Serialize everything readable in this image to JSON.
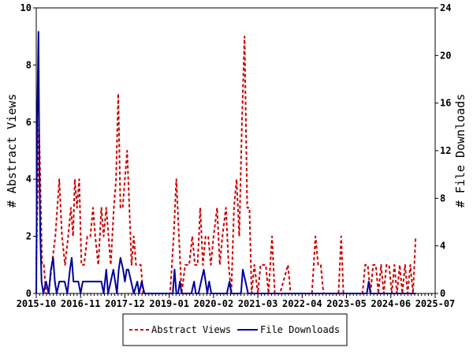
{
  "chart_data": {
    "type": "line",
    "x_axis": {
      "tick_labels": [
        "2015-10",
        "2016-11",
        "2017-12",
        "2019-01",
        "2020-02",
        "2021-03",
        "2022-04",
        "2023-05",
        "2024-06",
        "2025-07"
      ],
      "range": [
        "2015-10",
        "2025-07"
      ]
    },
    "y_left": {
      "label": "# Abstract Views",
      "min": 0,
      "max": 10,
      "ticks": [
        0,
        2,
        4,
        6,
        8,
        10
      ]
    },
    "y_right": {
      "label": "# File Downloads",
      "min": 0,
      "max": 24,
      "ticks": [
        0,
        4,
        8,
        12,
        16,
        20,
        24
      ]
    },
    "grid": false,
    "legend_placement": "bottom-center",
    "series": [
      {
        "name": "Abstract Views",
        "axis": "left",
        "color": "#cc0000",
        "style": "dashed",
        "points": [
          [
            0.0,
            1
          ],
          [
            0.06,
            6
          ],
          [
            0.09,
            4
          ],
          [
            0.13,
            1
          ],
          [
            0.17,
            1
          ],
          [
            0.22,
            0
          ],
          [
            0.28,
            0
          ],
          [
            0.35,
            1
          ],
          [
            0.43,
            2
          ],
          [
            0.52,
            4
          ],
          [
            0.58,
            2
          ],
          [
            0.65,
            1
          ],
          [
            0.72,
            2
          ],
          [
            0.78,
            3
          ],
          [
            0.83,
            2
          ],
          [
            0.87,
            4
          ],
          [
            0.92,
            3
          ],
          [
            0.97,
            4
          ],
          [
            1.02,
            1
          ],
          [
            1.08,
            1
          ],
          [
            1.15,
            2
          ],
          [
            1.22,
            2
          ],
          [
            1.28,
            3
          ],
          [
            1.33,
            2
          ],
          [
            1.4,
            1
          ],
          [
            1.47,
            3
          ],
          [
            1.52,
            2
          ],
          [
            1.58,
            3
          ],
          [
            1.63,
            2
          ],
          [
            1.68,
            1
          ],
          [
            1.75,
            3
          ],
          [
            1.8,
            4
          ],
          [
            1.85,
            7
          ],
          [
            1.9,
            3
          ],
          [
            1.95,
            3
          ],
          [
            2.0,
            4
          ],
          [
            2.05,
            5
          ],
          [
            2.1,
            3
          ],
          [
            2.15,
            1
          ],
          [
            2.2,
            2
          ],
          [
            2.25,
            1
          ],
          [
            2.3,
            1
          ],
          [
            2.36,
            1
          ],
          [
            2.41,
            0
          ],
          [
            2.5,
            0
          ],
          [
            2.7,
            0
          ],
          [
            2.9,
            0
          ],
          [
            3.02,
            0
          ],
          [
            3.1,
            2
          ],
          [
            3.16,
            4
          ],
          [
            3.22,
            2
          ],
          [
            3.28,
            0
          ],
          [
            3.36,
            1
          ],
          [
            3.45,
            1
          ],
          [
            3.52,
            2
          ],
          [
            3.58,
            1
          ],
          [
            3.64,
            1
          ],
          [
            3.7,
            3
          ],
          [
            3.76,
            1
          ],
          [
            3.82,
            2
          ],
          [
            3.88,
            2
          ],
          [
            3.94,
            1
          ],
          [
            4.0,
            2
          ],
          [
            4.08,
            3
          ],
          [
            4.14,
            1
          ],
          [
            4.2,
            2
          ],
          [
            4.28,
            3
          ],
          [
            4.34,
            1
          ],
          [
            4.4,
            0
          ],
          [
            4.46,
            3
          ],
          [
            4.52,
            4
          ],
          [
            4.58,
            2
          ],
          [
            4.64,
            6
          ],
          [
            4.7,
            9
          ],
          [
            4.76,
            3
          ],
          [
            4.81,
            3
          ],
          [
            4.86,
            0
          ],
          [
            4.92,
            1
          ],
          [
            5.0,
            0
          ],
          [
            5.06,
            1
          ],
          [
            5.12,
            1
          ],
          [
            5.18,
            1
          ],
          [
            5.24,
            0
          ],
          [
            5.32,
            2
          ],
          [
            5.38,
            0
          ],
          [
            5.5,
            0
          ],
          [
            5.68,
            1
          ],
          [
            5.74,
            0
          ],
          [
            5.9,
            0
          ],
          [
            6.1,
            0
          ],
          [
            6.22,
            0
          ],
          [
            6.3,
            2
          ],
          [
            6.36,
            1
          ],
          [
            6.42,
            1
          ],
          [
            6.48,
            0
          ],
          [
            6.6,
            0
          ],
          [
            6.72,
            0
          ],
          [
            6.82,
            0
          ],
          [
            6.88,
            2
          ],
          [
            6.93,
            0
          ],
          [
            7.05,
            0
          ],
          [
            7.15,
            0
          ],
          [
            7.25,
            0
          ],
          [
            7.36,
            0
          ],
          [
            7.42,
            1
          ],
          [
            7.48,
            1
          ],
          [
            7.54,
            0
          ],
          [
            7.6,
            1
          ],
          [
            7.66,
            1
          ],
          [
            7.72,
            0
          ],
          [
            7.78,
            1
          ],
          [
            7.84,
            0
          ],
          [
            7.9,
            1
          ],
          [
            7.96,
            1
          ],
          [
            8.02,
            0
          ],
          [
            8.08,
            1
          ],
          [
            8.14,
            0
          ],
          [
            8.2,
            1
          ],
          [
            8.26,
            0
          ],
          [
            8.32,
            1
          ],
          [
            8.38,
            0
          ],
          [
            8.44,
            1
          ],
          [
            8.5,
            0
          ],
          [
            8.56,
            2
          ]
        ]
      },
      {
        "name": "File Downloads",
        "axis": "right",
        "color": "#000099",
        "style": "solid",
        "points": [
          [
            0.0,
            0
          ],
          [
            0.02,
            14
          ],
          [
            0.05,
            22
          ],
          [
            0.07,
            11
          ],
          [
            0.09,
            5
          ],
          [
            0.12,
            1
          ],
          [
            0.16,
            0
          ],
          [
            0.22,
            1
          ],
          [
            0.28,
            0
          ],
          [
            0.33,
            2
          ],
          [
            0.38,
            3
          ],
          [
            0.42,
            1
          ],
          [
            0.46,
            0
          ],
          [
            0.52,
            1
          ],
          [
            0.58,
            1
          ],
          [
            0.64,
            1
          ],
          [
            0.7,
            0
          ],
          [
            0.76,
            2
          ],
          [
            0.8,
            3
          ],
          [
            0.84,
            1
          ],
          [
            0.9,
            1
          ],
          [
            0.95,
            1
          ],
          [
            1.0,
            0
          ],
          [
            1.05,
            1
          ],
          [
            1.12,
            1
          ],
          [
            1.2,
            1
          ],
          [
            1.3,
            1
          ],
          [
            1.4,
            1
          ],
          [
            1.47,
            1
          ],
          [
            1.52,
            0
          ],
          [
            1.58,
            2
          ],
          [
            1.62,
            0
          ],
          [
            1.68,
            1
          ],
          [
            1.74,
            2
          ],
          [
            1.78,
            1
          ],
          [
            1.82,
            0
          ],
          [
            1.86,
            2
          ],
          [
            1.9,
            3
          ],
          [
            1.96,
            2
          ],
          [
            2.0,
            1
          ],
          [
            2.04,
            2
          ],
          [
            2.08,
            2
          ],
          [
            2.14,
            1
          ],
          [
            2.2,
            0
          ],
          [
            2.28,
            1
          ],
          [
            2.32,
            0
          ],
          [
            2.38,
            1
          ],
          [
            2.44,
            0
          ],
          [
            2.55,
            0
          ],
          [
            2.7,
            0
          ],
          [
            2.85,
            0
          ],
          [
            3.0,
            0
          ],
          [
            3.08,
            0
          ],
          [
            3.12,
            2
          ],
          [
            3.16,
            0
          ],
          [
            3.2,
            0
          ],
          [
            3.24,
            1
          ],
          [
            3.28,
            0
          ],
          [
            3.4,
            0
          ],
          [
            3.5,
            0
          ],
          [
            3.56,
            1
          ],
          [
            3.6,
            0
          ],
          [
            3.66,
            0
          ],
          [
            3.72,
            1
          ],
          [
            3.78,
            2
          ],
          [
            3.82,
            1
          ],
          [
            3.86,
            0
          ],
          [
            3.9,
            1
          ],
          [
            3.95,
            0
          ],
          [
            4.05,
            0
          ],
          [
            4.2,
            0
          ],
          [
            4.3,
            0
          ],
          [
            4.36,
            1
          ],
          [
            4.4,
            0
          ],
          [
            4.5,
            0
          ],
          [
            4.56,
            0
          ],
          [
            4.62,
            0
          ],
          [
            4.66,
            2
          ],
          [
            4.72,
            1
          ],
          [
            4.78,
            0
          ],
          [
            4.9,
            0
          ],
          [
            5.1,
            0
          ],
          [
            5.4,
            0
          ],
          [
            5.8,
            0
          ],
          [
            6.2,
            0
          ],
          [
            6.6,
            0
          ],
          [
            7.0,
            0
          ],
          [
            7.4,
            0
          ],
          [
            7.46,
            0
          ],
          [
            7.5,
            1
          ],
          [
            7.54,
            0
          ],
          [
            7.8,
            0
          ],
          [
            8.2,
            0
          ],
          [
            8.56,
            0
          ]
        ]
      }
    ]
  }
}
